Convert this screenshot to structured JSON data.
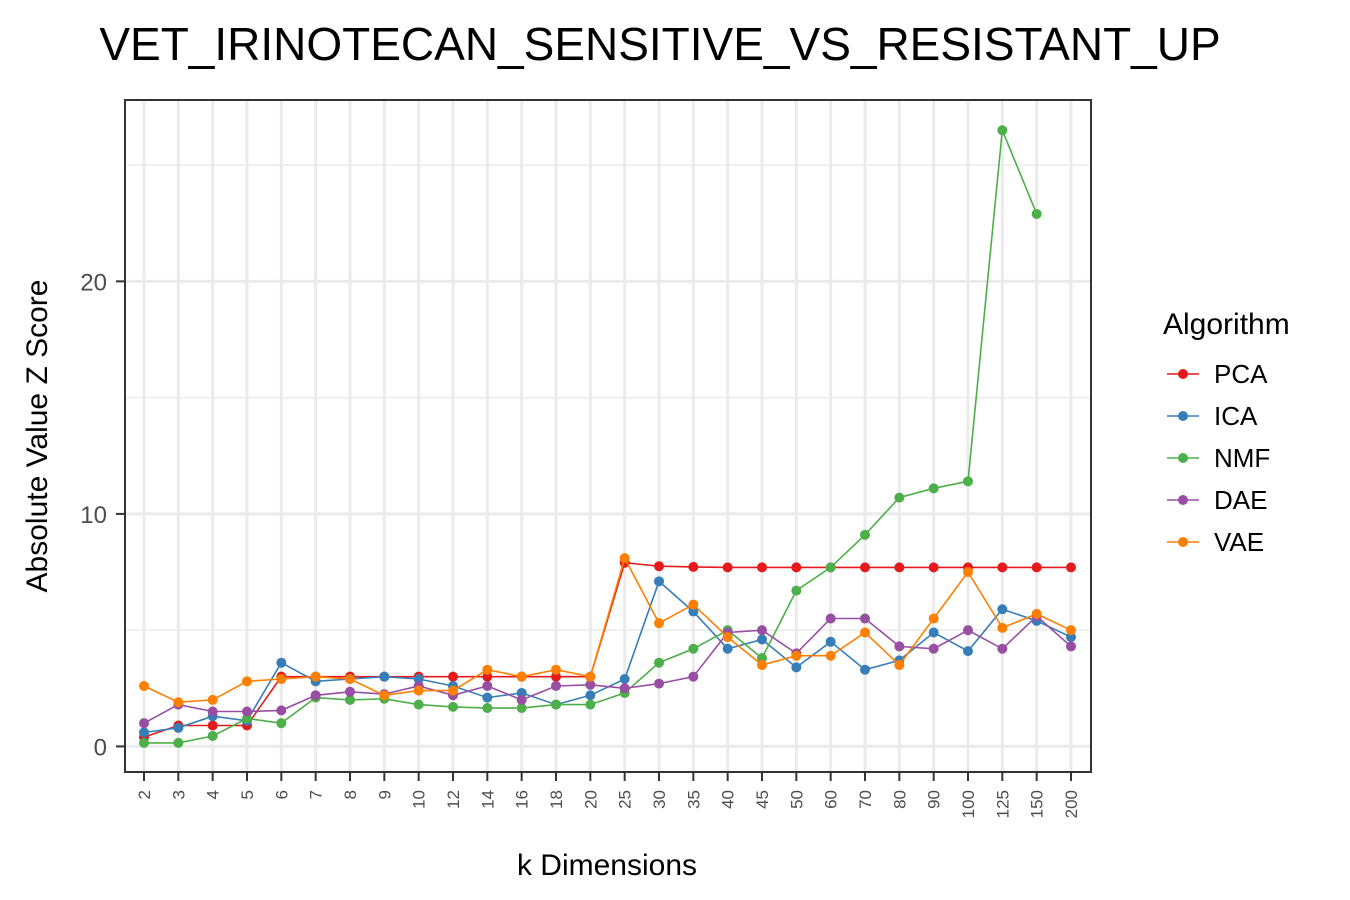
{
  "chart_data": {
    "type": "line",
    "title": "VET_IRINOTECAN_SENSITIVE_VS_RESISTANT_UP",
    "xlabel": "k Dimensions",
    "ylabel": "Absolute Value Z Score",
    "categories": [
      "2",
      "3",
      "4",
      "5",
      "6",
      "7",
      "8",
      "9",
      "10",
      "12",
      "14",
      "16",
      "18",
      "20",
      "25",
      "30",
      "35",
      "40",
      "45",
      "50",
      "60",
      "70",
      "80",
      "90",
      "100",
      "125",
      "150",
      "200"
    ],
    "y_ticks": [
      0,
      10,
      20
    ],
    "ylim": [
      -1.1,
      27.8
    ],
    "grid": true,
    "legend": {
      "title": "Algorithm",
      "position": "right"
    },
    "series": [
      {
        "name": "PCA",
        "color": "#E41A1C",
        "values": [
          0.4,
          0.9,
          0.9,
          0.9,
          3.0,
          3.0,
          3.0,
          3.0,
          3.0,
          3.0,
          3.0,
          3.0,
          3.0,
          3.0,
          7.9,
          7.75,
          7.72,
          7.7,
          7.7,
          7.7,
          7.7,
          7.7,
          7.7,
          7.7,
          7.7,
          7.7,
          7.7,
          7.7
        ]
      },
      {
        "name": "ICA",
        "color": "#377EB8",
        "values": [
          0.6,
          0.8,
          1.3,
          1.1,
          3.6,
          2.8,
          2.9,
          3.0,
          2.9,
          2.6,
          2.1,
          2.3,
          1.8,
          2.2,
          2.9,
          7.1,
          5.8,
          4.2,
          4.6,
          3.4,
          4.5,
          3.3,
          3.7,
          4.9,
          4.1,
          5.9,
          5.4,
          4.7
        ]
      },
      {
        "name": "NMF",
        "color": "#4DAF4A",
        "values": [
          0.15,
          0.15,
          0.45,
          1.2,
          1.0,
          2.1,
          2.0,
          2.05,
          1.8,
          1.7,
          1.65,
          1.65,
          1.8,
          1.8,
          2.3,
          3.6,
          4.2,
          5.0,
          3.8,
          6.7,
          7.7,
          9.1,
          10.7,
          11.1,
          11.4,
          26.5,
          22.9,
          null
        ]
      },
      {
        "name": "DAE",
        "color": "#984EA3",
        "values": [
          1.0,
          1.8,
          1.5,
          1.5,
          1.55,
          2.2,
          2.35,
          2.25,
          2.6,
          2.2,
          2.6,
          2.0,
          2.6,
          2.65,
          2.5,
          2.7,
          3.0,
          4.9,
          5.0,
          4.0,
          5.5,
          5.5,
          4.3,
          4.2,
          5.0,
          4.2,
          5.6,
          4.3
        ]
      },
      {
        "name": "VAE",
        "color": "#FF7F00",
        "values": [
          2.6,
          1.9,
          2.0,
          2.8,
          2.9,
          3.0,
          2.9,
          2.2,
          2.4,
          2.4,
          3.3,
          3.0,
          3.3,
          3.0,
          8.1,
          5.3,
          6.1,
          4.7,
          3.5,
          3.9,
          3.9,
          4.9,
          3.5,
          5.5,
          7.5,
          5.1,
          5.7,
          5.0
        ]
      }
    ]
  }
}
